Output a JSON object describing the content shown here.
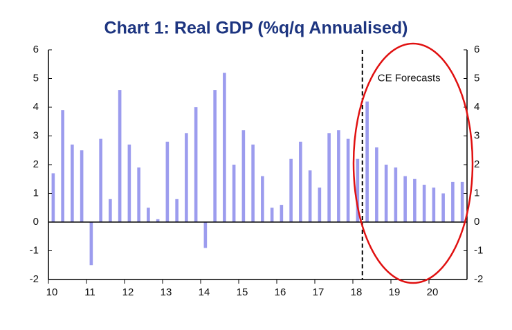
{
  "chart_data": {
    "type": "bar",
    "title": "Chart 1: Real GDP (%q/q Annualised)",
    "annotation": "CE Forecasts",
    "forecast_start": 18.25,
    "x": [
      10,
      10.25,
      10.5,
      10.75,
      11,
      11.25,
      11.5,
      11.75,
      12,
      12.25,
      12.5,
      12.75,
      13,
      13.25,
      13.5,
      13.75,
      14,
      14.25,
      14.5,
      14.75,
      15,
      15.25,
      15.5,
      15.75,
      16,
      16.25,
      16.5,
      16.75,
      17,
      17.25,
      17.5,
      17.75,
      18,
      18.25,
      18.5,
      18.75,
      19,
      19.25,
      19.5,
      19.75,
      20,
      20.25,
      20.5,
      20.75
    ],
    "values": [
      1.7,
      3.9,
      2.7,
      2.5,
      -1.5,
      2.9,
      0.8,
      4.6,
      2.7,
      1.9,
      0.5,
      0.1,
      2.8,
      0.8,
      3.1,
      4.0,
      -0.9,
      4.6,
      5.2,
      2.0,
      3.2,
      2.7,
      1.6,
      0.5,
      0.6,
      2.2,
      2.8,
      1.8,
      1.2,
      3.1,
      3.2,
      2.9,
      2.2,
      4.2,
      2.6,
      2.0,
      1.9,
      1.6,
      1.5,
      1.3,
      1.2,
      1.0,
      1.4,
      1.4
    ],
    "color": "#9c9cee",
    "xlim": [
      10,
      21
    ],
    "xticks": [
      10,
      11,
      12,
      13,
      14,
      15,
      16,
      17,
      18,
      19,
      20
    ],
    "ylim": [
      -2,
      6
    ],
    "yticks": [
      -2,
      -1,
      0,
      1,
      2,
      3,
      4,
      5,
      6
    ],
    "y2lim": [
      -2,
      6
    ],
    "y2ticks": [
      -2,
      -1,
      0,
      1,
      2,
      3,
      4,
      5,
      6
    ]
  }
}
